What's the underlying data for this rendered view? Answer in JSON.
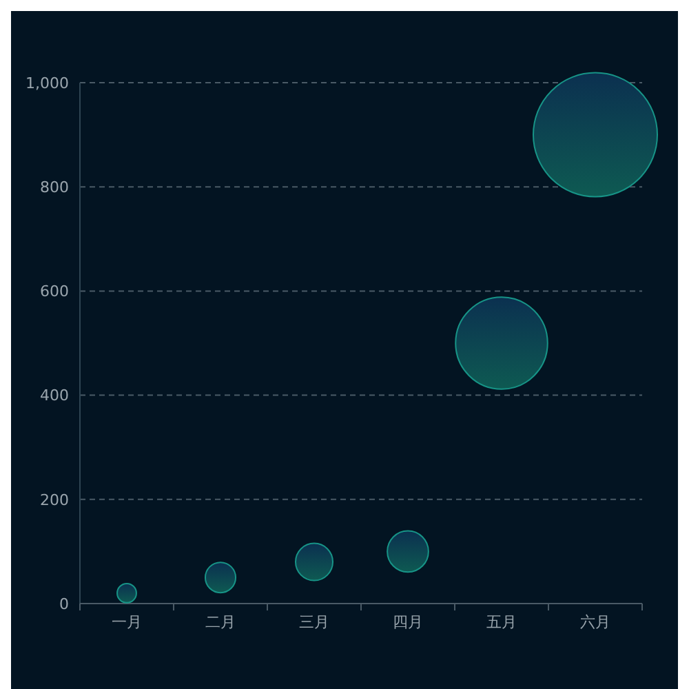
{
  "chart_data": {
    "type": "bubble",
    "categories": [
      "一月",
      "二月",
      "三月",
      "四月",
      "五月",
      "六月"
    ],
    "values": [
      20,
      50,
      80,
      100,
      500,
      900
    ],
    "sizes": [
      0.024,
      0.06,
      0.09,
      0.11,
      0.55,
      1
    ],
    "color": "#179487",
    "ylim": [
      0,
      1000
    ],
    "yticks": [
      0,
      200,
      400,
      600,
      800,
      {
        "value": 1000,
        "label": "1,000"
      }
    ],
    "grid": "y"
  }
}
